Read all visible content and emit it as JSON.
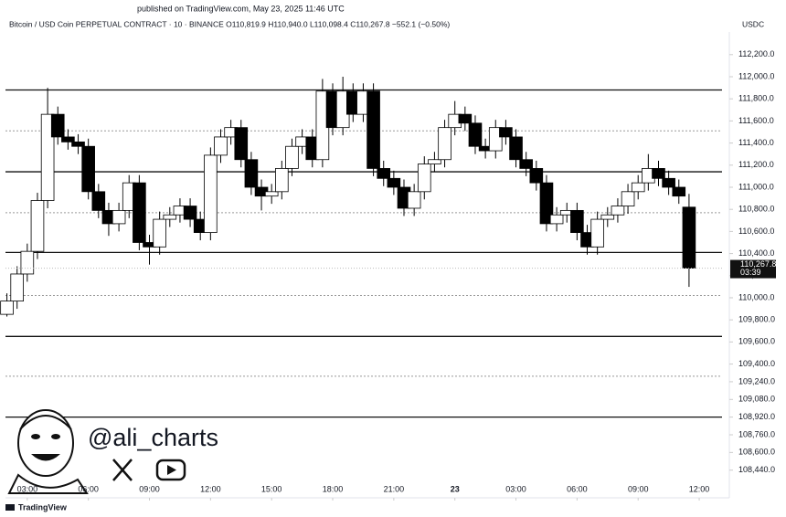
{
  "header": {
    "published": "published on TradingView.com, May 23, 2025 11:46 UTC"
  },
  "chart_data": {
    "type": "candlestick",
    "symbol_line": "Bitcoin / USD Coin PERPETUAL CONTRACT · 10 · BINANCE  O110,819.9  H110,940.0  L110,098.4  C110,267.8  −552.1 (−0.50%)",
    "currency": "USDC",
    "x": [
      2.0,
      2.5,
      3.0,
      3.5,
      4.0,
      4.5,
      5.0,
      5.5,
      6.0,
      6.5,
      7.0,
      7.5,
      8.0,
      8.5,
      9.0,
      9.5,
      10.0,
      10.5,
      11.0,
      11.5,
      12.0,
      12.5,
      13.0,
      13.5,
      14.0,
      14.5,
      15.0,
      15.5,
      16.0,
      16.5,
      17.0,
      17.5,
      18.0,
      18.5,
      19.0,
      19.5,
      20.0,
      20.5,
      21.0,
      21.5,
      22.0,
      22.5,
      23.0,
      23.5,
      24.0,
      24.5,
      25.0,
      25.5,
      26.0,
      26.5,
      27.0,
      27.5,
      28.0,
      28.5,
      29.0,
      29.5,
      30.0,
      30.5,
      31.0,
      31.5,
      32.0,
      32.5,
      33.0,
      33.5,
      34.0,
      34.5,
      35.0,
      35.5
    ],
    "open": [
      109850,
      109970,
      110215,
      110420,
      110880,
      111660,
      111455,
      111410,
      111370,
      110960,
      110790,
      110670,
      110790,
      111040,
      110500,
      110460,
      110710,
      110750,
      110830,
      110710,
      110590,
      111290,
      111455,
      111540,
      111250,
      111000,
      110920,
      110960,
      111170,
      111370,
      111455,
      111250,
      111870,
      111540,
      111870,
      111660,
      111870,
      111170,
      111080,
      111000,
      110810,
      110960,
      111210,
      111250,
      111540,
      111660,
      111580,
      111370,
      111330,
      111540,
      111455,
      111250,
      111170,
      111040,
      110670,
      110750,
      110790,
      110590,
      110460,
      110710,
      110750,
      110830,
      110960,
      111040,
      111170,
      111080,
      111000,
      110819.9
    ],
    "high": [
      110040,
      110285,
      110490,
      110950,
      111900,
      111730,
      111525,
      111480,
      111440,
      111030,
      110860,
      110860,
      111110,
      111110,
      110570,
      110780,
      110820,
      110900,
      110900,
      110780,
      111360,
      111525,
      111610,
      111610,
      111320,
      111070,
      111030,
      111240,
      111440,
      111525,
      111525,
      111980,
      111940,
      112000,
      111940,
      111940,
      111940,
      111240,
      111150,
      111070,
      111030,
      111280,
      111320,
      111610,
      111780,
      111730,
      111650,
      111440,
      111610,
      111610,
      111525,
      111320,
      111240,
      111110,
      110820,
      110860,
      110860,
      110660,
      110780,
      110820,
      110900,
      111030,
      111110,
      111300,
      111240,
      111150,
      111070,
      110940.0
    ],
    "low": [
      109830,
      109900,
      110145,
      110350,
      110810,
      111385,
      111340,
      111300,
      110890,
      110720,
      110560,
      110600,
      110720,
      110430,
      110300,
      110390,
      110640,
      110680,
      110640,
      110520,
      110520,
      111220,
      111385,
      111180,
      110930,
      110790,
      110850,
      110890,
      111100,
      111300,
      111180,
      111180,
      111470,
      111470,
      111590,
      111590,
      111100,
      111010,
      110930,
      110740,
      110740,
      110890,
      111140,
      111180,
      111470,
      111510,
      111300,
      111260,
      111260,
      111385,
      111180,
      111100,
      110970,
      110600,
      110600,
      110680,
      110520,
      110390,
      110390,
      110640,
      110680,
      110760,
      110890,
      110970,
      111010,
      110930,
      110850,
      110098.4
    ],
    "close": [
      109970,
      110215,
      110420,
      110880,
      111660,
      111455,
      111410,
      111370,
      110960,
      110790,
      110670,
      110790,
      111040,
      110500,
      110460,
      110710,
      110750,
      110830,
      110710,
      110590,
      111290,
      111455,
      111540,
      111250,
      111000,
      110920,
      110960,
      111170,
      111370,
      111455,
      111250,
      111870,
      111540,
      111870,
      111660,
      111870,
      111170,
      111080,
      111000,
      110810,
      110960,
      111210,
      111250,
      111540,
      111660,
      111580,
      111370,
      111330,
      111540,
      111455,
      111250,
      111170,
      111040,
      110670,
      110750,
      110790,
      110590,
      110460,
      110710,
      110750,
      110830,
      110960,
      111040,
      111170,
      111080,
      111000,
      110920,
      110267.8
    ],
    "up_color": "#ffffff",
    "down_color": "#000000",
    "wick_color": "#000000",
    "last_price_label": "110,267.8",
    "countdown": "03:39",
    "solid_levels": [
      111880,
      111140,
      110410,
      109650,
      108920
    ],
    "dashed_levels": [
      111510,
      110770,
      110020,
      109290
    ],
    "xlim": [
      1.93,
      37.12
    ],
    "xticks": [
      {
        "value": 3,
        "label": "03:00"
      },
      {
        "value": 6,
        "label": "06:00"
      },
      {
        "value": 9,
        "label": "09:00"
      },
      {
        "value": 12,
        "label": "12:00"
      },
      {
        "value": 15,
        "label": "15:00"
      },
      {
        "value": 18,
        "label": "18:00"
      },
      {
        "value": 21,
        "label": "21:00"
      },
      {
        "value": 24,
        "label": "23"
      },
      {
        "value": 27,
        "label": "03:00"
      },
      {
        "value": 30,
        "label": "06:00"
      },
      {
        "value": 33,
        "label": "09:00"
      },
      {
        "value": 36,
        "label": "12:00"
      }
    ],
    "ylim": [
      108231,
      112405
    ],
    "yticks": [
      {
        "value": 112200,
        "label": "112,200.0"
      },
      {
        "value": 112000,
        "label": "112,000.0"
      },
      {
        "value": 111800,
        "label": "111,800.0"
      },
      {
        "value": 111600,
        "label": "111,600.0"
      },
      {
        "value": 111400,
        "label": "111,400.0"
      },
      {
        "value": 111200,
        "label": "111,200.0"
      },
      {
        "value": 111000,
        "label": "111,000.0"
      },
      {
        "value": 110800,
        "label": "110,800.0"
      },
      {
        "value": 110600,
        "label": "110,600.0"
      },
      {
        "value": 110400,
        "label": "110,400.0"
      },
      {
        "value": 110200,
        "label": "110,200.0"
      },
      {
        "value": 110000,
        "label": "110,000.0"
      },
      {
        "value": 109800,
        "label": "109,800.0"
      },
      {
        "value": 109600,
        "label": "109,600.0"
      },
      {
        "value": 109400,
        "label": "109,400.0"
      },
      {
        "value": 109240,
        "label": "109,240.0"
      },
      {
        "value": 109080,
        "label": "109,080.0"
      },
      {
        "value": 108920,
        "label": "108,920.0"
      },
      {
        "value": 108760,
        "label": "108,760.0"
      },
      {
        "value": 108600,
        "label": "108,600.0"
      },
      {
        "value": 108440,
        "label": "108,440.0"
      }
    ],
    "grid": false
  },
  "watermark": {
    "handle": "@ali_charts"
  },
  "footer": {
    "brand": "TradingView"
  }
}
